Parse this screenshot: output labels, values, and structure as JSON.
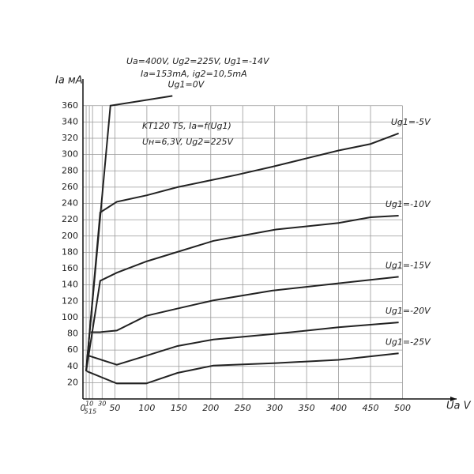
{
  "chart_data": {
    "type": "line",
    "title": "KT120 TS, Ia=f(Ug1)",
    "subtitle": "Uн=6,3V, Ug2=225V",
    "annotations": [
      "Ua=400V, Ug2=225V, Ug1=-14V",
      "Ia=153mA, ig2=10,5mA"
    ],
    "xlabel": "Ua V",
    "ylabel": "Ia мА",
    "xlim": [
      0,
      560
    ],
    "ylim": [
      0,
      385
    ],
    "xticks": [
      0,
      5,
      10,
      15,
      30,
      50,
      100,
      150,
      200,
      250,
      300,
      350,
      400,
      450,
      500
    ],
    "yticks": [
      20,
      40,
      60,
      80,
      100,
      120,
      140,
      160,
      180,
      200,
      220,
      240,
      260,
      280,
      300,
      320,
      340,
      360
    ],
    "grid": true,
    "series": [
      {
        "name": "Ug1=0V",
        "color": "#222222",
        "x": [
          5,
          43,
          140
        ],
        "values": [
          35,
          360,
          372
        ]
      },
      {
        "name": "Ug1=-5V",
        "color": "#222222",
        "x": [
          5,
          27,
          53,
          100,
          148,
          240,
          296,
          400,
          450,
          494
        ],
        "values": [
          34,
          229,
          242,
          250,
          260,
          275,
          285,
          305,
          313,
          326
        ]
      },
      {
        "name": "Ug1=-10V",
        "color": "#222222",
        "x": [
          5,
          27,
          53,
          100,
          204,
          302,
          400,
          450,
          494
        ],
        "values": [
          34,
          145,
          155,
          169,
          194,
          208,
          216,
          223,
          225
        ]
      },
      {
        "name": "Ug1=-15V",
        "color": "#222222",
        "x": [
          12,
          27,
          53,
          99,
          148,
          204,
          296,
          400,
          494
        ],
        "values": [
          82,
          82,
          84,
          102,
          111,
          121,
          133,
          142,
          150
        ]
      },
      {
        "name": "Ug1=-20V",
        "color": "#222222",
        "x": [
          9,
          53,
          99,
          148,
          204,
          302,
          400,
          494
        ],
        "values": [
          53,
          42,
          53,
          65,
          73,
          80,
          88,
          94
        ]
      },
      {
        "name": "Ug1=-25V",
        "color": "#222222",
        "x": [
          6,
          53,
          99,
          148,
          204,
          302,
          400,
          494
        ],
        "values": [
          34,
          19,
          19,
          32,
          41,
          44,
          48,
          56
        ]
      }
    ]
  }
}
